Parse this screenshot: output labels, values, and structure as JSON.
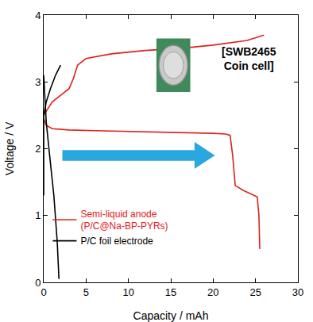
{
  "chart_data": {
    "type": "line",
    "x_label": "Capacity / mAh",
    "y_label": "Voltage / V",
    "xlim": [
      0,
      30
    ],
    "xticks": [
      0,
      5,
      10,
      15,
      20,
      25,
      30
    ],
    "ylim": [
      0,
      4
    ],
    "yticks": [
      0,
      1,
      2,
      3,
      4
    ],
    "grid": false,
    "legend": "lower left",
    "annotations": [
      "[SWB2465 Coin cell]"
    ],
    "series": [
      {
        "name": "Semi-liquid anode (P/C@Na-BP-PYRs)",
        "color": "#e0201b",
        "x": [
          0,
          0.3,
          1,
          3,
          6,
          10,
          15,
          20,
          21.5,
          22,
          22.3,
          22.6,
          23.5,
          24.5,
          25.2,
          25.4,
          25.5,
          null,
          0,
          0.5,
          1,
          2,
          3,
          3.5,
          4,
          5,
          8,
          12,
          16,
          20,
          24,
          26
        ],
        "values": [
          2.45,
          2.35,
          2.3,
          2.28,
          2.27,
          2.26,
          2.25,
          2.23,
          2.22,
          2.2,
          1.9,
          1.45,
          1.38,
          1.32,
          1.28,
          1.0,
          0.5,
          null,
          2.5,
          2.6,
          2.7,
          2.8,
          2.9,
          3.05,
          3.25,
          3.35,
          3.42,
          3.47,
          3.5,
          3.55,
          3.62,
          3.7
        ]
      },
      {
        "name": "P/C foil electrode",
        "color": "#000000",
        "x": [
          0,
          0.1,
          0.3,
          0.7,
          1.2,
          1.6,
          1.8,
          null,
          0,
          0,
          0.3,
          0.8,
          1.4,
          2
        ],
        "values": [
          3.1,
          2.8,
          2.4,
          1.9,
          1.3,
          0.6,
          0.05,
          null,
          1.3,
          2.5,
          2.7,
          2.9,
          3.1,
          3.25
        ]
      }
    ]
  }
}
